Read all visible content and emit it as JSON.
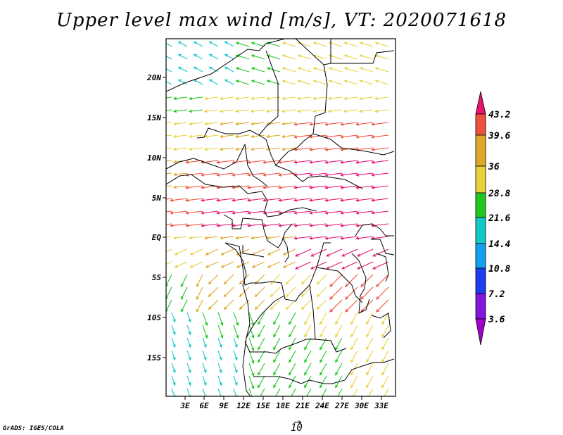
{
  "title": "Upper level max wind [m/s], VT: 2020071618",
  "credit": "GrADS: IGES/COLA",
  "reference_vector": "10",
  "lat_labels": [
    "20N",
    "15N",
    "10N",
    "5N",
    "EQ",
    "5S",
    "10S",
    "15S"
  ],
  "lon_labels": [
    "3E",
    "6E",
    "9E",
    "12E",
    "15E",
    "18E",
    "21E",
    "24E",
    "27E",
    "30E",
    "33E"
  ],
  "colorbar": {
    "levels": [
      "43.2",
      "39.6",
      "36",
      "28.8",
      "21.6",
      "14.4",
      "10.8",
      "7.2",
      "3.6"
    ],
    "colors": [
      "#e8146e",
      "#f0503c",
      "#e0a828",
      "#e8d23c",
      "#1ec81e",
      "#14c8c8",
      "#14a0f0",
      "#1e3cf0",
      "#8214dc",
      "#a000c8"
    ]
  },
  "map_domain": {
    "lon_range": [
      0.5,
      34
    ],
    "lat_range": [
      -22,
      24.5
    ]
  }
}
